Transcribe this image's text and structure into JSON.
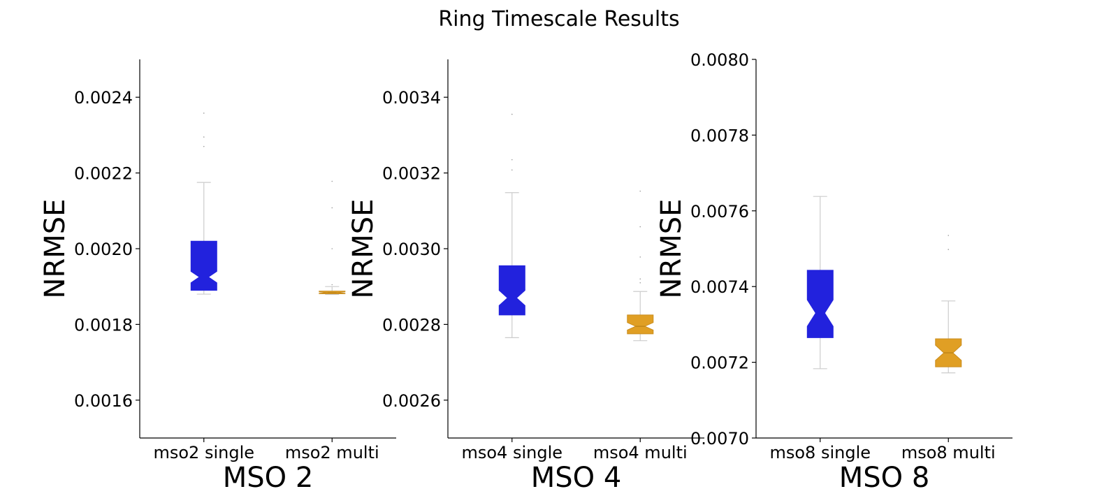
{
  "chart_data": {
    "type": "box",
    "title": "Ring Timescale Results",
    "colors": {
      "single": "#2222dd",
      "multi": "#e09f24"
    },
    "panels": [
      {
        "xlabel": "MSO 2",
        "ylabel": "NRMSE",
        "ylim": [
          0.0015,
          0.0025
        ],
        "yticks": [
          0.0016,
          0.0018,
          0.002,
          0.0022,
          0.0024
        ],
        "ytick_labels": [
          "0.0016",
          "0.0018",
          "0.0020",
          "0.0022",
          "0.0024"
        ],
        "categories": [
          "mso2 single",
          "mso2 multi"
        ],
        "boxes": [
          {
            "whislo": 0.00188,
            "q1": 0.00189,
            "notch_lo": 0.00191,
            "med": 0.001925,
            "notch_hi": 0.00194,
            "q3": 0.00202,
            "whishi": 0.002175,
            "fliers": [
              0.00227,
              0.002295,
              0.002358
            ]
          },
          {
            "whislo": 0.001879,
            "q1": 0.001881,
            "notch_lo": 0.001882,
            "med": 0.001884,
            "notch_hi": 0.001886,
            "q3": 0.001888,
            "whishi": 0.0019,
            "fliers": [
              0.001905,
              0.002,
              0.002108,
              0.002178
            ]
          }
        ]
      },
      {
        "xlabel": "MSO 4",
        "ylabel": "NRMSE",
        "ylim": [
          0.0025,
          0.0035
        ],
        "yticks": [
          0.0026,
          0.0028,
          0.003,
          0.0032,
          0.0034
        ],
        "ytick_labels": [
          "0.0026",
          "0.0028",
          "0.0030",
          "0.0032",
          "0.0034"
        ],
        "categories": [
          "mso4 single",
          "mso4 multi"
        ],
        "boxes": [
          {
            "whislo": 0.002765,
            "q1": 0.002825,
            "notch_lo": 0.00285,
            "med": 0.00287,
            "notch_hi": 0.00289,
            "q3": 0.002955,
            "whishi": 0.003148,
            "fliers": [
              0.003208,
              0.003235,
              0.003355
            ]
          },
          {
            "whislo": 0.002757,
            "q1": 0.002775,
            "notch_lo": 0.002785,
            "med": 0.002795,
            "notch_hi": 0.002805,
            "q3": 0.002825,
            "whishi": 0.002887,
            "fliers": [
              0.00291,
              0.00292,
              0.002978,
              0.003058,
              0.003152
            ]
          }
        ]
      },
      {
        "xlabel": "MSO 8",
        "ylabel": "NRMSE",
        "ylim": [
          0.007,
          0.008
        ],
        "yticks": [
          0.007,
          0.0072,
          0.0074,
          0.0076,
          0.0078,
          0.008
        ],
        "ytick_labels": [
          "0.0070",
          "0.0072",
          "0.0074",
          "0.0076",
          "0.0078",
          "0.0080"
        ],
        "categories": [
          "mso8 single",
          "mso8 multi"
        ],
        "boxes": [
          {
            "whislo": 0.007183,
            "q1": 0.007265,
            "notch_lo": 0.007295,
            "med": 0.00733,
            "notch_hi": 0.007365,
            "q3": 0.007443,
            "whishi": 0.007638,
            "fliers": []
          },
          {
            "whislo": 0.007172,
            "q1": 0.007188,
            "notch_lo": 0.007205,
            "med": 0.007225,
            "notch_hi": 0.007245,
            "q3": 0.007262,
            "whishi": 0.007362,
            "fliers": [
              0.007498,
              0.007535
            ]
          }
        ]
      }
    ]
  }
}
